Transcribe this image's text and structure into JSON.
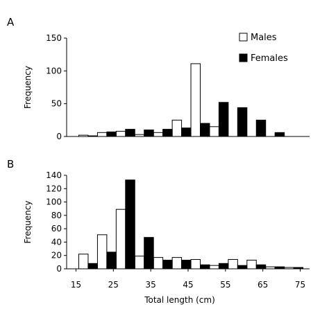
{
  "chart_data": [
    {
      "type": "bar",
      "panel_label": "A",
      "xlabel": "",
      "ylabel": "Frequency",
      "ylim": [
        0,
        150
      ],
      "yticks": [
        0,
        50,
        100,
        150
      ],
      "x": [
        17,
        20,
        22,
        25,
        27,
        30,
        32,
        35,
        37,
        40,
        42,
        45,
        47,
        50,
        52,
        55,
        57,
        60,
        62,
        65,
        67,
        70,
        72,
        75
      ],
      "bar_width": 2.5,
      "series": [
        {
          "name": "Males",
          "color": "#ffffff",
          "x": [
            17,
            22,
            27,
            32,
            37,
            42,
            47,
            52,
            57,
            62,
            67,
            72
          ],
          "values": [
            2,
            6,
            8,
            3,
            6,
            25,
            111,
            15,
            0,
            0,
            0,
            0
          ]
        },
        {
          "name": "Females",
          "color": "#000000",
          "x": [
            19.5,
            24.5,
            29.5,
            34.5,
            39.5,
            44.5,
            49.5,
            54.5,
            59.5,
            64.5,
            69.5,
            74.5
          ],
          "values": [
            1,
            7,
            11,
            10,
            11,
            13,
            20,
            52,
            44,
            25,
            6,
            0
          ]
        }
      ],
      "legend": {
        "placement": "top-right",
        "entries": [
          "Males",
          "Females"
        ]
      }
    },
    {
      "type": "bar",
      "panel_label": "B",
      "xlabel": "Total length (cm)",
      "ylabel": "Frequency",
      "ylim": [
        0,
        140
      ],
      "yticks": [
        0,
        20,
        40,
        60,
        80,
        100,
        120,
        140
      ],
      "xticks": [
        15,
        25,
        35,
        45,
        55,
        65,
        75
      ],
      "bar_width": 2.5,
      "series": [
        {
          "name": "Males",
          "color": "#ffffff",
          "x": [
            17,
            22,
            27,
            32,
            37,
            42,
            47,
            52,
            57,
            62,
            67,
            72
          ],
          "values": [
            22,
            51,
            89,
            19,
            17,
            17,
            14,
            5,
            14,
            13,
            3,
            2
          ]
        },
        {
          "name": "Females",
          "color": "#000000",
          "x": [
            19.5,
            24.5,
            29.5,
            34.5,
            39.5,
            44.5,
            49.5,
            54.5,
            59.5,
            64.5,
            69.5,
            74.5
          ],
          "values": [
            8,
            25,
            133,
            47,
            13,
            13,
            6,
            8,
            5,
            6,
            3,
            2
          ]
        }
      ]
    }
  ]
}
